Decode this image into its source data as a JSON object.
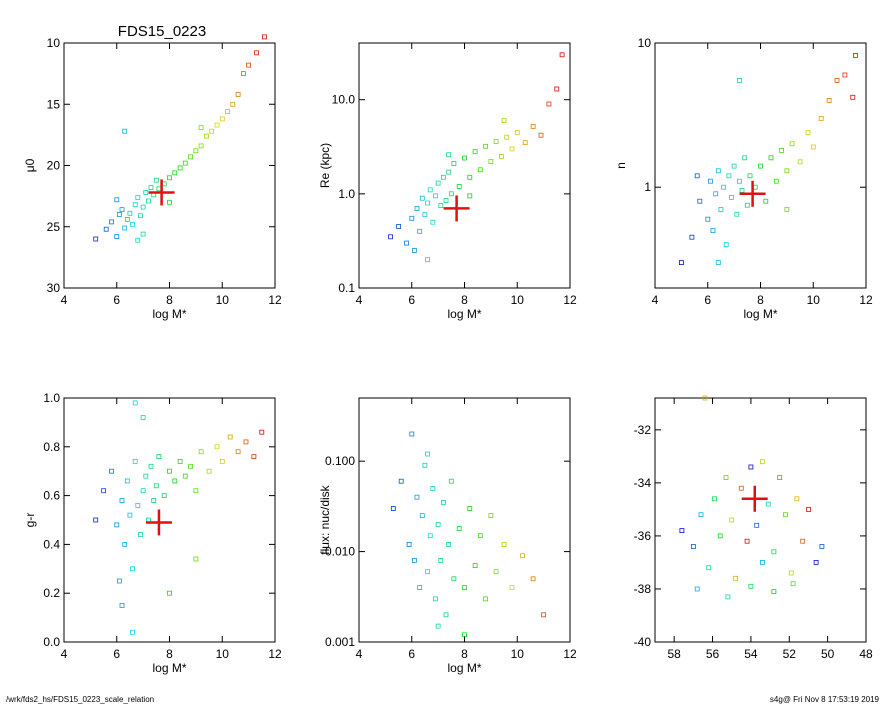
{
  "title": "FDS15_0223",
  "footer": {
    "path": "/wrk/fds2_hs/FDS15_0223_scale_relation",
    "stamp": "s4g@  Fri Nov  8 17:53:19 2019"
  },
  "colors": {
    "marker": "#e01010",
    "axis": "#000000"
  },
  "chart_data": [
    {
      "id": "p1",
      "type": "scatter",
      "xlabel": "log M*",
      "ylabel": "μ0",
      "xlim": [
        4,
        12
      ],
      "ylim": [
        30,
        10
      ],
      "yscale": "linear",
      "xticks": [
        4,
        6,
        8,
        10,
        12
      ],
      "xtick_labels": [
        "4",
        "6",
        "8",
        "10",
        "12"
      ],
      "yticks": [
        10,
        15,
        20,
        25,
        30
      ],
      "ytick_labels": [
        "10",
        "15",
        "20",
        "25",
        "30"
      ],
      "highlight": {
        "x": 7.7,
        "y": 22.2
      },
      "points": [
        [
          5.6,
          25.2
        ],
        [
          5.8,
          24.6
        ],
        [
          6.0,
          25.8
        ],
        [
          6.1,
          24.0
        ],
        [
          6.2,
          23.6
        ],
        [
          6.3,
          25.1
        ],
        [
          6.4,
          24.4
        ],
        [
          6.5,
          23.9
        ],
        [
          6.6,
          24.8
        ],
        [
          6.7,
          23.2
        ],
        [
          6.8,
          22.6
        ],
        [
          6.9,
          24.1
        ],
        [
          7.0,
          23.4
        ],
        [
          7.1,
          22.2
        ],
        [
          7.2,
          22.9
        ],
        [
          7.3,
          21.8
        ],
        [
          7.4,
          22.4
        ],
        [
          7.5,
          21.2
        ],
        [
          7.6,
          21.9
        ],
        [
          7.8,
          21.5
        ],
        [
          8.0,
          21.0
        ],
        [
          8.2,
          20.6
        ],
        [
          8.4,
          20.2
        ],
        [
          8.6,
          19.8
        ],
        [
          8.8,
          19.3
        ],
        [
          9.0,
          18.8
        ],
        [
          9.2,
          18.4
        ],
        [
          9.4,
          17.6
        ],
        [
          9.6,
          17.2
        ],
        [
          9.8,
          16.7
        ],
        [
          10.0,
          16.2
        ],
        [
          10.2,
          15.6
        ],
        [
          10.4,
          15.0
        ],
        [
          10.6,
          14.2
        ],
        [
          10.8,
          12.5
        ],
        [
          11.0,
          11.8
        ],
        [
          11.3,
          10.8
        ],
        [
          11.6,
          9.5
        ],
        [
          6.3,
          17.2
        ],
        [
          9.2,
          16.9
        ],
        [
          5.2,
          26.0
        ],
        [
          6.0,
          22.8
        ],
        [
          7.0,
          25.6
        ],
        [
          8.0,
          23.0
        ],
        [
          6.8,
          26.1
        ]
      ]
    },
    {
      "id": "p2",
      "type": "scatter",
      "xlabel": "log M*",
      "ylabel": "Re (kpc)",
      "xlim": [
        4,
        12
      ],
      "ylim": [
        0.1,
        40
      ],
      "yscale": "log",
      "xticks": [
        4,
        6,
        8,
        10,
        12
      ],
      "xtick_labels": [
        "4",
        "6",
        "8",
        "10",
        "12"
      ],
      "yticks": [
        0.1,
        1.0,
        10.0
      ],
      "ytick_labels": [
        "0.1",
        "1.0",
        "10.0"
      ],
      "highlight": {
        "x": 7.7,
        "y": 0.7
      },
      "points": [
        [
          5.2,
          0.35
        ],
        [
          5.5,
          0.45
        ],
        [
          5.8,
          0.3
        ],
        [
          6.0,
          0.55
        ],
        [
          6.1,
          0.25
        ],
        [
          6.2,
          0.7
        ],
        [
          6.3,
          0.4
        ],
        [
          6.4,
          0.9
        ],
        [
          6.5,
          0.6
        ],
        [
          6.6,
          0.8
        ],
        [
          6.7,
          1.1
        ],
        [
          6.8,
          0.5
        ],
        [
          6.9,
          0.95
        ],
        [
          7.0,
          1.3
        ],
        [
          7.1,
          0.75
        ],
        [
          7.2,
          1.5
        ],
        [
          7.3,
          0.85
        ],
        [
          7.4,
          1.7
        ],
        [
          7.5,
          1.0
        ],
        [
          7.6,
          2.1
        ],
        [
          7.8,
          1.2
        ],
        [
          8.0,
          2.4
        ],
        [
          8.2,
          1.5
        ],
        [
          8.4,
          2.8
        ],
        [
          8.6,
          1.8
        ],
        [
          8.8,
          3.2
        ],
        [
          9.0,
          2.2
        ],
        [
          9.2,
          3.6
        ],
        [
          9.4,
          2.5
        ],
        [
          9.6,
          4.0
        ],
        [
          9.8,
          3.0
        ],
        [
          10.0,
          4.5
        ],
        [
          10.3,
          3.5
        ],
        [
          10.6,
          5.2
        ],
        [
          10.9,
          4.2
        ],
        [
          11.2,
          9.0
        ],
        [
          11.5,
          13.0
        ],
        [
          11.7,
          30.0
        ],
        [
          9.5,
          6.0
        ],
        [
          7.4,
          2.6
        ],
        [
          6.6,
          0.2
        ],
        [
          8.2,
          0.95
        ]
      ]
    },
    {
      "id": "p3",
      "type": "scatter",
      "xlabel": "log M*",
      "ylabel": "n",
      "xlim": [
        4,
        12
      ],
      "ylim": [
        0.2,
        10
      ],
      "yscale": "log",
      "xticks": [
        4,
        6,
        8,
        10,
        12
      ],
      "xtick_labels": [
        "4",
        "6",
        "8",
        "10",
        "12"
      ],
      "yticks": [
        1,
        10
      ],
      "ytick_labels": [
        "1",
        "10"
      ],
      "highlight": {
        "x": 7.7,
        "y": 0.9
      },
      "points": [
        [
          5.0,
          0.3
        ],
        [
          5.4,
          0.45
        ],
        [
          5.7,
          0.8
        ],
        [
          6.0,
          0.6
        ],
        [
          6.1,
          1.1
        ],
        [
          6.2,
          0.5
        ],
        [
          6.3,
          0.9
        ],
        [
          6.4,
          1.3
        ],
        [
          6.5,
          0.7
        ],
        [
          6.6,
          1.0
        ],
        [
          6.7,
          0.4
        ],
        [
          6.8,
          1.2
        ],
        [
          6.9,
          0.85
        ],
        [
          7.0,
          1.4
        ],
        [
          7.1,
          0.65
        ],
        [
          7.2,
          1.1
        ],
        [
          7.3,
          0.95
        ],
        [
          7.4,
          1.6
        ],
        [
          7.5,
          0.75
        ],
        [
          7.6,
          1.2
        ],
        [
          7.8,
          1.0
        ],
        [
          8.0,
          1.4
        ],
        [
          8.2,
          0.8
        ],
        [
          8.4,
          1.6
        ],
        [
          8.6,
          1.1
        ],
        [
          8.8,
          1.8
        ],
        [
          9.0,
          1.3
        ],
        [
          9.2,
          2.0
        ],
        [
          9.5,
          1.5
        ],
        [
          9.8,
          2.4
        ],
        [
          10.0,
          1.9
        ],
        [
          10.3,
          3.0
        ],
        [
          10.6,
          4.0
        ],
        [
          10.9,
          5.5
        ],
        [
          11.2,
          6.0
        ],
        [
          11.5,
          4.2
        ],
        [
          11.6,
          8.2
        ],
        [
          7.2,
          5.5
        ],
        [
          6.4,
          0.3
        ],
        [
          9.0,
          0.7
        ],
        [
          5.6,
          1.2
        ]
      ]
    },
    {
      "id": "p4",
      "type": "scatter",
      "xlabel": "log M*",
      "ylabel": "g-r",
      "xlim": [
        4,
        12
      ],
      "ylim": [
        0.0,
        1.0
      ],
      "yscale": "linear",
      "xticks": [
        4,
        6,
        8,
        10,
        12
      ],
      "xtick_labels": [
        "4",
        "6",
        "8",
        "10",
        "12"
      ],
      "yticks": [
        0.0,
        0.2,
        0.4,
        0.6,
        0.8,
        1.0
      ],
      "ytick_labels": [
        "0.0",
        "0.2",
        "0.4",
        "0.6",
        "0.8",
        "1.0"
      ],
      "highlight": {
        "x": 7.6,
        "y": 0.49
      },
      "points": [
        [
          5.2,
          0.5
        ],
        [
          5.5,
          0.62
        ],
        [
          5.8,
          0.7
        ],
        [
          6.0,
          0.48
        ],
        [
          6.1,
          0.25
        ],
        [
          6.2,
          0.58
        ],
        [
          6.3,
          0.4
        ],
        [
          6.4,
          0.66
        ],
        [
          6.5,
          0.52
        ],
        [
          6.6,
          0.3
        ],
        [
          6.7,
          0.74
        ],
        [
          6.8,
          0.56
        ],
        [
          6.9,
          0.44
        ],
        [
          7.0,
          0.62
        ],
        [
          7.1,
          0.68
        ],
        [
          7.2,
          0.5
        ],
        [
          7.3,
          0.72
        ],
        [
          7.4,
          0.58
        ],
        [
          7.5,
          0.64
        ],
        [
          7.6,
          0.76
        ],
        [
          7.8,
          0.6
        ],
        [
          8.0,
          0.7
        ],
        [
          8.2,
          0.66
        ],
        [
          8.4,
          0.74
        ],
        [
          8.6,
          0.68
        ],
        [
          8.8,
          0.72
        ],
        [
          9.0,
          0.62
        ],
        [
          9.2,
          0.78
        ],
        [
          9.5,
          0.7
        ],
        [
          9.8,
          0.8
        ],
        [
          10.0,
          0.74
        ],
        [
          10.3,
          0.84
        ],
        [
          10.6,
          0.78
        ],
        [
          10.9,
          0.82
        ],
        [
          11.2,
          0.76
        ],
        [
          11.5,
          0.86
        ],
        [
          6.7,
          0.98
        ],
        [
          7.0,
          0.92
        ],
        [
          6.6,
          0.04
        ],
        [
          8.0,
          0.2
        ],
        [
          6.2,
          0.15
        ],
        [
          9.0,
          0.34
        ]
      ]
    },
    {
      "id": "p5",
      "type": "scatter",
      "xlabel": "log M*",
      "ylabel": "flux: nuc/disk",
      "xlim": [
        4,
        12
      ],
      "ylim": [
        0.001,
        0.5
      ],
      "yscale": "log",
      "xticks": [
        4,
        6,
        8,
        10,
        12
      ],
      "xtick_labels": [
        "4",
        "6",
        "8",
        "10",
        "12"
      ],
      "yticks": [
        0.001,
        0.01,
        0.1
      ],
      "ytick_labels": [
        "0.001",
        "0.010",
        "0.100"
      ],
      "points": [
        [
          5.3,
          0.03
        ],
        [
          5.6,
          0.06
        ],
        [
          5.9,
          0.012
        ],
        [
          6.0,
          0.2
        ],
        [
          6.1,
          0.008
        ],
        [
          6.2,
          0.04
        ],
        [
          6.3,
          0.004
        ],
        [
          6.4,
          0.025
        ],
        [
          6.5,
          0.09
        ],
        [
          6.6,
          0.006
        ],
        [
          6.7,
          0.015
        ],
        [
          6.8,
          0.05
        ],
        [
          6.9,
          0.003
        ],
        [
          7.0,
          0.02
        ],
        [
          7.1,
          0.008
        ],
        [
          7.2,
          0.035
        ],
        [
          7.3,
          0.002
        ],
        [
          7.4,
          0.012
        ],
        [
          7.5,
          0.06
        ],
        [
          7.6,
          0.005
        ],
        [
          7.8,
          0.018
        ],
        [
          8.0,
          0.004
        ],
        [
          8.2,
          0.03
        ],
        [
          8.4,
          0.007
        ],
        [
          8.6,
          0.015
        ],
        [
          8.8,
          0.003
        ],
        [
          9.0,
          0.025
        ],
        [
          9.2,
          0.006
        ],
        [
          9.5,
          0.012
        ],
        [
          9.8,
          0.004
        ],
        [
          10.2,
          0.009
        ],
        [
          10.6,
          0.005
        ],
        [
          11.0,
          0.002
        ],
        [
          6.6,
          0.12
        ],
        [
          7.0,
          0.0015
        ],
        [
          8.0,
          0.0012
        ]
      ]
    },
    {
      "id": "p6",
      "type": "scatter",
      "xlabel": "",
      "ylabel": "",
      "xlim": [
        59,
        48
      ],
      "ylim": [
        -40,
        -30.8
      ],
      "yscale": "linear",
      "xticks": [
        58,
        56,
        54,
        52,
        50,
        48
      ],
      "xtick_labels": [
        "58",
        "56",
        "54",
        "52",
        "50",
        "48"
      ],
      "yticks": [
        -40,
        -38,
        -36,
        -34,
        -32
      ],
      "ytick_labels": [
        "-40",
        "-38",
        "-36",
        "-34",
        "-32"
      ],
      "highlight": {
        "x": 53.8,
        "y": -34.6
      },
      "points": [
        [
          57.6,
          -35.8
        ],
        [
          57.0,
          -36.4
        ],
        [
          56.6,
          -35.2
        ],
        [
          56.2,
          -37.2
        ],
        [
          55.9,
          -34.6
        ],
        [
          55.6,
          -36.0
        ],
        [
          55.3,
          -33.8
        ],
        [
          55.0,
          -35.4
        ],
        [
          54.8,
          -37.6
        ],
        [
          54.5,
          -34.2
        ],
        [
          54.2,
          -36.2
        ],
        [
          54.0,
          -33.4
        ],
        [
          53.7,
          -35.6
        ],
        [
          53.4,
          -37.0
        ],
        [
          53.1,
          -34.8
        ],
        [
          52.8,
          -36.6
        ],
        [
          52.5,
          -33.8
        ],
        [
          52.2,
          -35.2
        ],
        [
          51.9,
          -37.4
        ],
        [
          51.6,
          -34.6
        ],
        [
          51.3,
          -36.2
        ],
        [
          51.0,
          -35.0
        ],
        [
          50.6,
          -37.0
        ],
        [
          50.3,
          -36.4
        ],
        [
          56.8,
          -38.0
        ],
        [
          55.2,
          -38.3
        ],
        [
          54.0,
          -37.9
        ],
        [
          52.8,
          -38.1
        ],
        [
          51.8,
          -37.8
        ],
        [
          53.4,
          -33.2
        ],
        [
          56.4,
          -30.8
        ]
      ]
    }
  ]
}
